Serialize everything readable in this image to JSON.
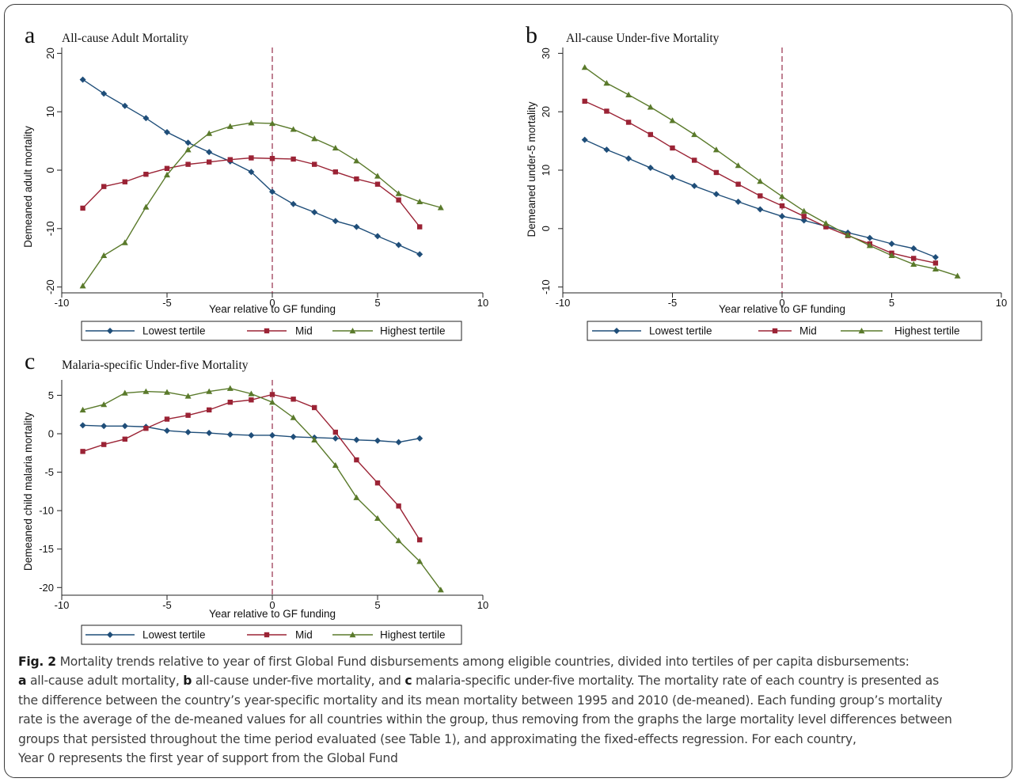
{
  "panel_letters": [
    "a",
    "b",
    "c"
  ],
  "caption": {
    "fig_label": "Fig. 2",
    "line1": "Mortality trends relative to year of first Global Fund disbursements among eligible countries, divided into tertiles of per capita disbursements:",
    "line2_a": "a",
    "line2_a_text": " all-cause adult mortality, ",
    "line2_b": "b",
    "line2_b_text": " all-cause under-five mortality, and ",
    "line2_c": "c",
    "line2_c_text": " malaria-specific under-five mortality. The mortality rate of each country is presented as",
    "line3": "the difference between the country’s year-specific mortality and its mean mortality between 1995 and 2010 (de-meaned). Each funding group’s mortality",
    "line4": "rate is the average of the de-meaned values for all countries within the group, thus removing from the graphs the large mortality level differences between",
    "line5": "groups that persisted throughout the time period evaluated (see Table 1), and approximating the fixed-effects regression. For each country,",
    "line6": "Year 0 represents the first year of support from the Global Fund"
  },
  "chart_data": [
    {
      "type": "line",
      "letter": "a",
      "title": "All-cause Adult Mortality",
      "xlabel": "Year relative to GF funding",
      "ylabel": "Demeaned adult mortality",
      "xlim": [
        -10,
        10
      ],
      "ylim": [
        -21,
        21
      ],
      "xticks": [
        -10,
        -5,
        0,
        5,
        10
      ],
      "yticks": [
        -20,
        -10,
        0,
        10,
        20
      ],
      "vline_x": 0,
      "grid": false,
      "legend_position": "bottom",
      "series": [
        {
          "name": "Lowest tertile",
          "color": "#1f4e79",
          "marker": "diamond",
          "x": [
            -9,
            -8,
            -7,
            -6,
            -5,
            -4,
            -3,
            -2,
            -1,
            0,
            1,
            2,
            3,
            4,
            5,
            6,
            7
          ],
          "values": [
            15.5,
            13.1,
            11.0,
            8.9,
            6.5,
            4.7,
            3.1,
            1.5,
            -0.3,
            -3.7,
            -5.8,
            -7.2,
            -8.7,
            -9.7,
            -11.3,
            -12.8,
            -14.4
          ]
        },
        {
          "name": "Mid",
          "color": "#9b2335",
          "marker": "square",
          "x": [
            -9,
            -8,
            -7,
            -6,
            -5,
            -4,
            -3,
            -2,
            -1,
            0,
            1,
            2,
            3,
            4,
            5,
            6,
            7
          ],
          "values": [
            -6.5,
            -2.8,
            -2.0,
            -0.7,
            0.3,
            1.0,
            1.4,
            1.8,
            2.1,
            2.0,
            1.9,
            1.0,
            -0.3,
            -1.5,
            -2.4,
            -5.1,
            -9.7
          ]
        },
        {
          "name": "Highest tertile",
          "color": "#5a7a2b",
          "marker": "triangle",
          "x": [
            -9,
            -8,
            -7,
            -6,
            -5,
            -4,
            -3,
            -2,
            -1,
            0,
            1,
            2,
            3,
            4,
            5,
            6,
            7,
            8
          ],
          "values": [
            -19.8,
            -14.6,
            -12.4,
            -6.3,
            -0.8,
            3.5,
            6.3,
            7.5,
            8.1,
            8.0,
            7.0,
            5.4,
            3.8,
            1.6,
            -1.0,
            -4.0,
            -5.4,
            -6.4
          ]
        }
      ]
    },
    {
      "type": "line",
      "letter": "b",
      "title": "All-cause Under-five Mortality",
      "xlabel": "Year relative to GF funding",
      "ylabel": "Demeaned under-5 mortality",
      "xlim": [
        -10,
        10
      ],
      "ylim": [
        -11,
        31
      ],
      "xticks": [
        -10,
        -5,
        0,
        5,
        10
      ],
      "yticks": [
        -10,
        0,
        10,
        20,
        30
      ],
      "vline_x": 0,
      "grid": false,
      "legend_position": "bottom",
      "series": [
        {
          "name": "Lowest tertile",
          "color": "#1f4e79",
          "marker": "diamond",
          "x": [
            -9,
            -8,
            -7,
            -6,
            -5,
            -4,
            -3,
            -2,
            -1,
            0,
            1,
            2,
            3,
            4,
            5,
            6,
            7
          ],
          "values": [
            15.2,
            13.5,
            12.0,
            10.4,
            8.8,
            7.3,
            5.9,
            4.6,
            3.3,
            2.1,
            1.4,
            0.4,
            -0.7,
            -1.6,
            -2.6,
            -3.4,
            -4.9
          ]
        },
        {
          "name": "Mid",
          "color": "#9b2335",
          "marker": "square",
          "x": [
            -9,
            -8,
            -7,
            -6,
            -5,
            -4,
            -3,
            -2,
            -1,
            0,
            1,
            2,
            3,
            4,
            5,
            6,
            7
          ],
          "values": [
            21.8,
            20.1,
            18.2,
            16.1,
            13.8,
            11.7,
            9.6,
            7.6,
            5.6,
            3.9,
            2.1,
            0.3,
            -1.2,
            -2.6,
            -4.2,
            -5.1,
            -5.9
          ]
        },
        {
          "name": "Highest tertile",
          "color": "#5a7a2b",
          "marker": "triangle",
          "x": [
            -9,
            -8,
            -7,
            -6,
            -5,
            -4,
            -3,
            -2,
            -1,
            0,
            1,
            2,
            3,
            4,
            5,
            6,
            7,
            8
          ],
          "values": [
            27.6,
            24.9,
            22.9,
            20.8,
            18.5,
            16.1,
            13.5,
            10.8,
            8.1,
            5.5,
            3.0,
            0.9,
            -1.1,
            -2.9,
            -4.6,
            -6.1,
            -6.9,
            -8.1
          ]
        }
      ]
    },
    {
      "type": "line",
      "letter": "c",
      "title": "Malaria-specific Under-five Mortality",
      "xlabel": "Year relative to GF funding",
      "ylabel": "Demeaned child malaria mortality",
      "xlim": [
        -10,
        10
      ],
      "ylim": [
        -21,
        7
      ],
      "xticks": [
        -10,
        -5,
        0,
        5,
        10
      ],
      "yticks": [
        -20,
        -15,
        -10,
        -5,
        0,
        5
      ],
      "vline_x": 0,
      "grid": false,
      "legend_position": "bottom",
      "series": [
        {
          "name": "Lowest tertile",
          "color": "#1f4e79",
          "marker": "diamond",
          "x": [
            -9,
            -8,
            -7,
            -6,
            -5,
            -4,
            -3,
            -2,
            -1,
            0,
            1,
            2,
            3,
            4,
            5,
            6,
            7
          ],
          "values": [
            1.1,
            1.0,
            1.0,
            0.9,
            0.4,
            0.2,
            0.1,
            -0.1,
            -0.2,
            -0.2,
            -0.4,
            -0.5,
            -0.6,
            -0.8,
            -0.9,
            -1.1,
            -0.6
          ]
        },
        {
          "name": "Mid",
          "color": "#9b2335",
          "marker": "square",
          "x": [
            -9,
            -8,
            -7,
            -6,
            -5,
            -4,
            -3,
            -2,
            -1,
            0,
            1,
            2,
            3,
            4,
            5,
            6,
            7
          ],
          "values": [
            -2.3,
            -1.4,
            -0.7,
            0.7,
            1.9,
            2.4,
            3.1,
            4.1,
            4.4,
            5.1,
            4.5,
            3.4,
            0.2,
            -3.4,
            -6.4,
            -9.4,
            -13.8
          ]
        },
        {
          "name": "Highest tertile",
          "color": "#5a7a2b",
          "marker": "triangle",
          "x": [
            -9,
            -8,
            -7,
            -6,
            -5,
            -4,
            -3,
            -2,
            -1,
            0,
            1,
            2,
            3,
            4,
            5,
            6,
            7,
            8
          ],
          "values": [
            3.1,
            3.8,
            5.3,
            5.5,
            5.4,
            4.9,
            5.5,
            5.9,
            5.2,
            4.1,
            2.1,
            -0.8,
            -4.1,
            -8.3,
            -11.0,
            -13.9,
            -16.6,
            -20.3
          ]
        }
      ]
    }
  ]
}
